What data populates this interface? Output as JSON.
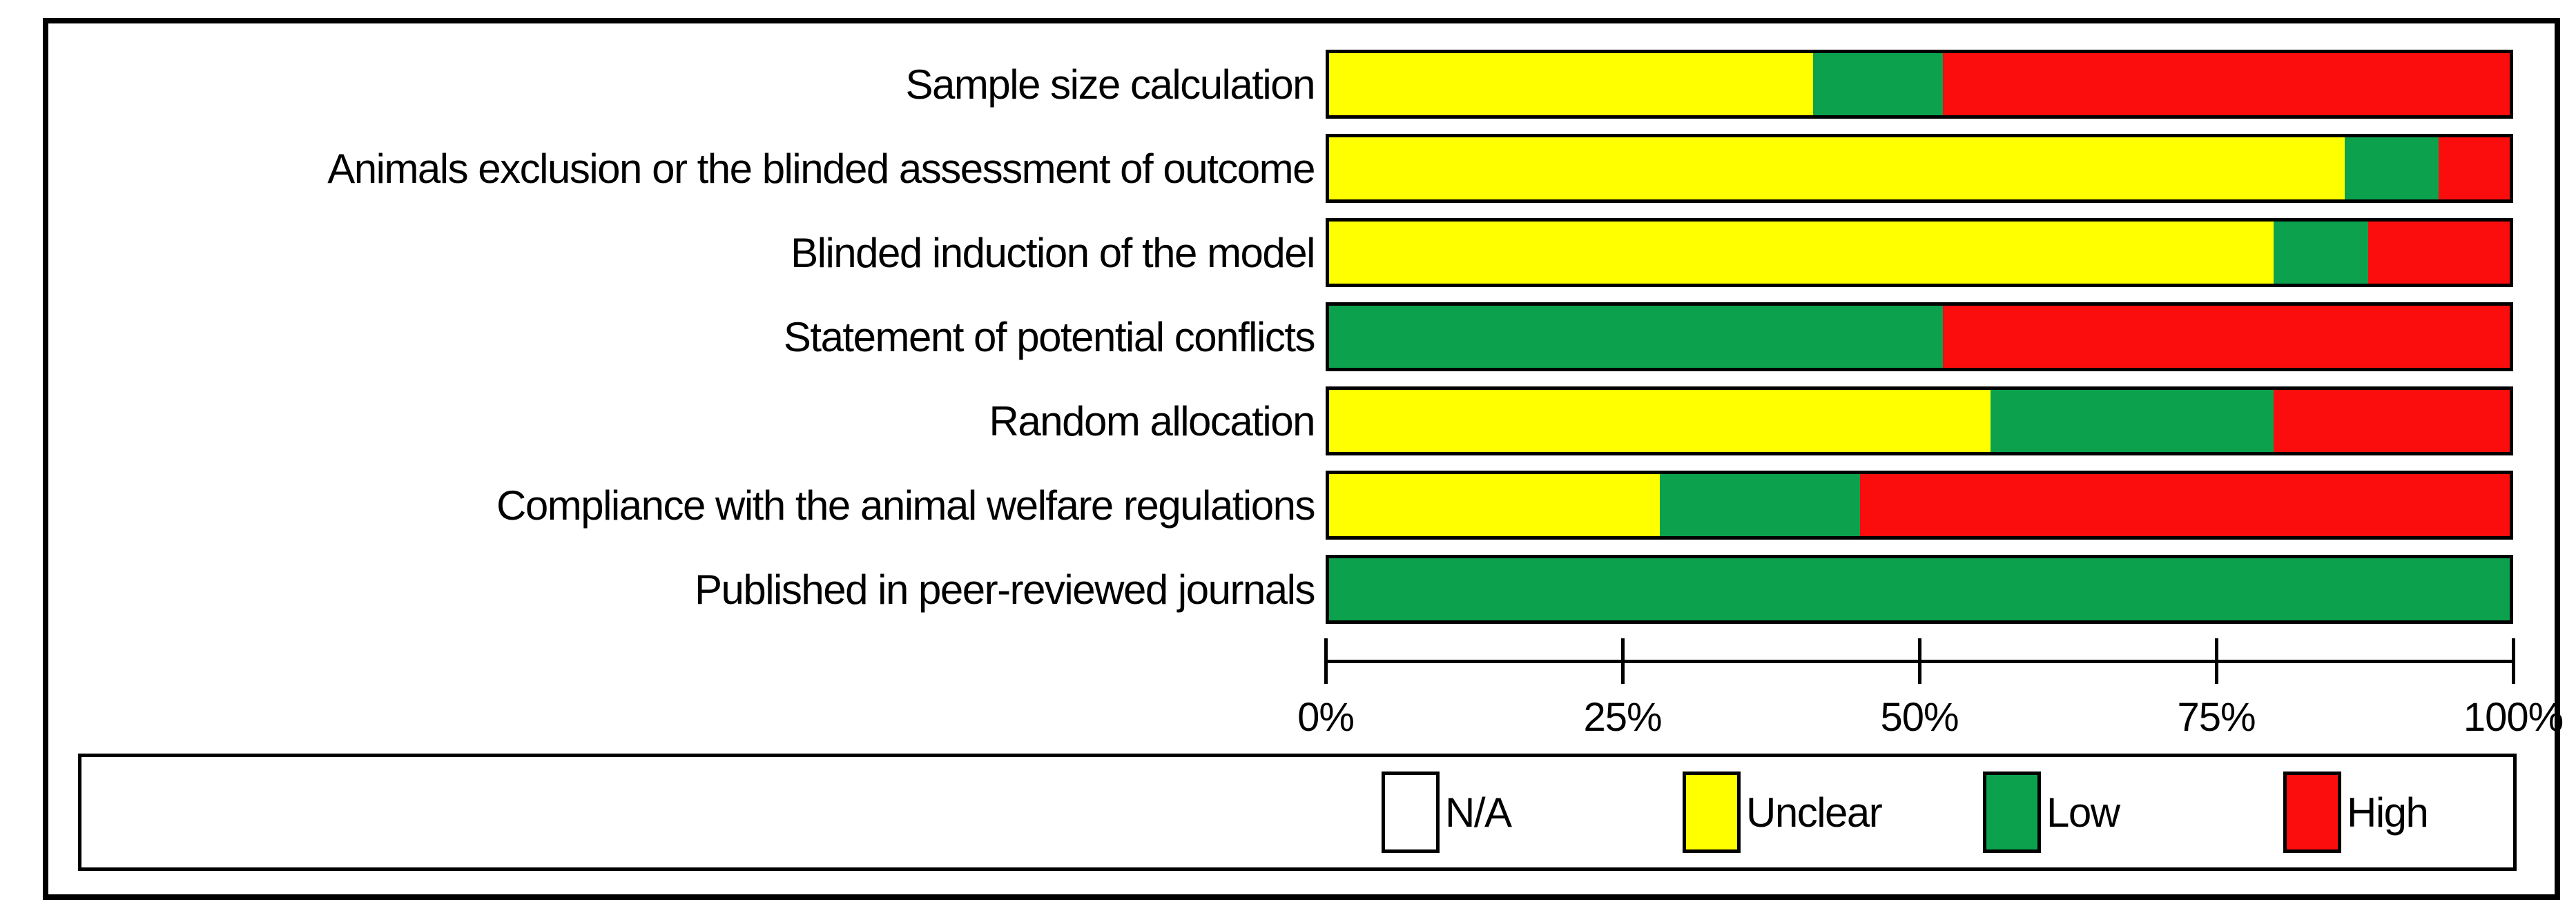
{
  "chart_data": {
    "type": "bar",
    "orientation": "horizontal",
    "stacked": true,
    "value_unit": "percent",
    "title": "",
    "xlabel": "",
    "ylabel": "",
    "categories": [
      "Sample size calculation",
      "Animals exclusion or the blinded assessment of outcome",
      "Blinded induction of the model",
      "Statement of potential conflicts",
      "Random allocation",
      "Compliance with the animal welfare regulations",
      "Published in peer-reviewed journals"
    ],
    "series": [
      {
        "name": "N/A",
        "color": "#ffffff",
        "values": [
          0,
          0,
          0,
          0,
          0,
          0,
          0
        ]
      },
      {
        "name": "Unclear",
        "color": "#ffff00",
        "values": [
          41,
          86,
          80,
          0,
          56,
          28,
          0
        ]
      },
      {
        "name": "Low",
        "color": "#0ca24d",
        "values": [
          11,
          8,
          8,
          52,
          24,
          17,
          100
        ]
      },
      {
        "name": "High",
        "color": "#fb0d0d",
        "values": [
          48,
          6,
          12,
          48,
          20,
          55,
          0
        ]
      }
    ],
    "x_axis": {
      "ticks": [
        "0%",
        "25%",
        "50%",
        "75%",
        "100%"
      ],
      "range": [
        0,
        100
      ],
      "grid": false
    },
    "legend": {
      "position": "bottom",
      "entries": [
        "N/A",
        "Unclear",
        "Low",
        "High"
      ]
    }
  },
  "colors": {
    "na": "#ffffff",
    "unclear": "#ffff00",
    "low": "#0ca24d",
    "high": "#fb0d0d",
    "border": "#000000",
    "background": "#ffffff"
  }
}
